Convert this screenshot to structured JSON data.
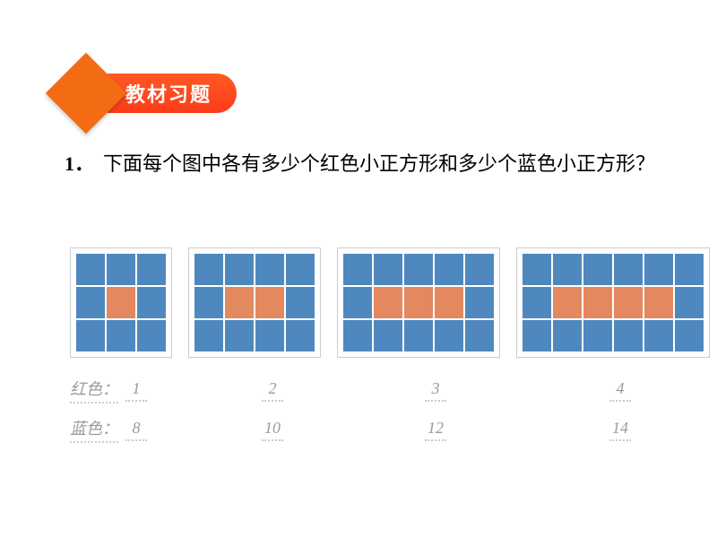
{
  "header": {
    "badge_text": "教材习题",
    "diamond_color": "#f36b13",
    "pill_gradient_from": "#ff5a23",
    "pill_gradient_to": "#fd3a1a"
  },
  "question": {
    "number": "1．",
    "text": "下面每个图中各有多少个红色小正方形和多少个蓝色小正方形？"
  },
  "colors": {
    "blue_cell": "#4f88bf",
    "red_cell": "#e48860",
    "cell_border": "#ffffff",
    "answer_text": "#9a9a9a"
  },
  "grids": [
    {
      "cols": 3,
      "rows": 3,
      "red_start": 1,
      "red_count": 1
    },
    {
      "cols": 4,
      "rows": 3,
      "red_start": 1,
      "red_count": 2
    },
    {
      "cols": 5,
      "rows": 3,
      "red_start": 1,
      "red_count": 3
    },
    {
      "cols": 6,
      "rows": 3,
      "red_start": 1,
      "red_count": 4
    }
  ],
  "answers": {
    "red_label": "红色：",
    "blue_label": "蓝色：",
    "red_values": [
      "1",
      "2",
      "3",
      "4"
    ],
    "blue_values": [
      "8",
      "10",
      "12",
      "14"
    ],
    "col_spacing": [
      0,
      128,
      158,
      182
    ]
  }
}
